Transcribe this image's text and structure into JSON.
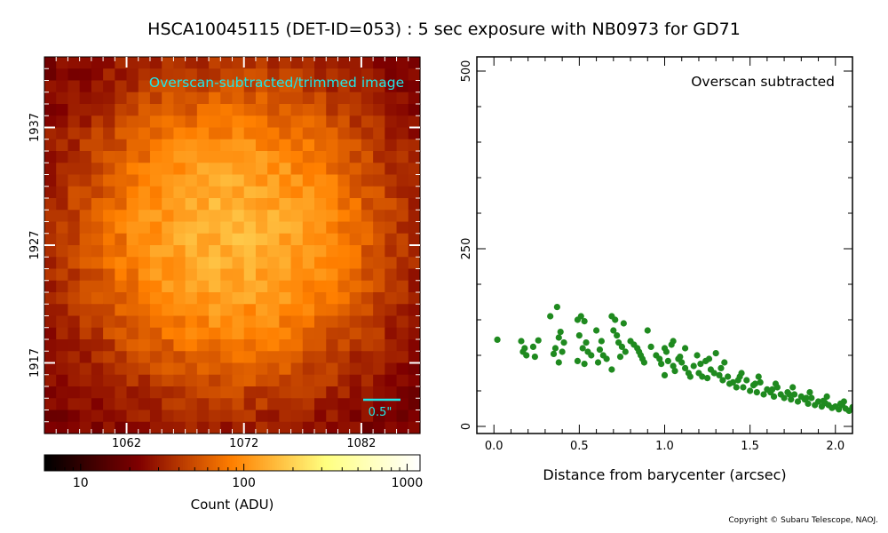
{
  "title": "HSCA10045115 (DET-ID=053) :  5 sec exposure with NB0973 for GD71",
  "copyright": "Copyright © Subaru Telescope, NAOJ.",
  "colors": {
    "cyan": "#22e6e6",
    "scatter": "#1f8a1f",
    "frame": "#000000"
  },
  "chart_data": [
    {
      "type": "heatmap",
      "title": "Overscan-subtracted/trimmed image",
      "x_ticks": [
        "1062",
        "1072",
        "1082"
      ],
      "y_ticks": [
        "1937",
        "1927",
        "1917"
      ],
      "x_tick_values": [
        1062,
        1072,
        1082
      ],
      "y_tick_values": [
        1937,
        1927,
        1917
      ],
      "xlim": [
        1055,
        1087
      ],
      "ylim": [
        1911,
        1943
      ],
      "star_center": [
        1071,
        1928
      ],
      "peak_counts": 150,
      "background_counts": 20,
      "scale_bar_label": "0.5\"",
      "colorbar": {
        "label": "Count (ADU)",
        "scale": "log",
        "range": [
          6,
          1200
        ],
        "ticks": [
          "10",
          "100",
          "1000"
        ],
        "tick_values": [
          10,
          100,
          1000
        ],
        "colormap": "afmhot"
      }
    },
    {
      "type": "scatter",
      "annotation": "Overscan subtracted",
      "xlabel": "Distance from barycenter (arcsec)",
      "x_ticks": [
        "0.0",
        "0.5",
        "1.0",
        "1.5",
        "2.0"
      ],
      "x_tick_values": [
        0.0,
        0.5,
        1.0,
        1.5,
        2.0
      ],
      "y_ticks": [
        "0",
        "250",
        "500"
      ],
      "y_tick_values": [
        0,
        250,
        500
      ],
      "xlim": [
        -0.1,
        2.1
      ],
      "ylim": [
        -10,
        520
      ],
      "points": [
        [
          0.02,
          122
        ],
        [
          0.16,
          120
        ],
        [
          0.18,
          110
        ],
        [
          0.17,
          105
        ],
        [
          0.19,
          100
        ],
        [
          0.23,
          112
        ],
        [
          0.24,
          98
        ],
        [
          0.26,
          121
        ],
        [
          0.33,
          155
        ],
        [
          0.35,
          102
        ],
        [
          0.37,
          168
        ],
        [
          0.39,
          133
        ],
        [
          0.38,
          125
        ],
        [
          0.36,
          110
        ],
        [
          0.4,
          105
        ],
        [
          0.41,
          118
        ],
        [
          0.38,
          90
        ],
        [
          0.49,
          150
        ],
        [
          0.51,
          155
        ],
        [
          0.53,
          148
        ],
        [
          0.5,
          128
        ],
        [
          0.52,
          110
        ],
        [
          0.54,
          118
        ],
        [
          0.55,
          105
        ],
        [
          0.57,
          100
        ],
        [
          0.49,
          92
        ],
        [
          0.53,
          88
        ],
        [
          0.6,
          135
        ],
        [
          0.63,
          120
        ],
        [
          0.62,
          108
        ],
        [
          0.64,
          100
        ],
        [
          0.66,
          95
        ],
        [
          0.61,
          90
        ],
        [
          0.69,
          155
        ],
        [
          0.71,
          150
        ],
        [
          0.7,
          135
        ],
        [
          0.72,
          128
        ],
        [
          0.73,
          118
        ],
        [
          0.75,
          112
        ],
        [
          0.76,
          145
        ],
        [
          0.77,
          105
        ],
        [
          0.74,
          98
        ],
        [
          0.69,
          80
        ],
        [
          0.8,
          120
        ],
        [
          0.82,
          115
        ],
        [
          0.84,
          110
        ],
        [
          0.85,
          105
        ],
        [
          0.86,
          100
        ],
        [
          0.87,
          95
        ],
        [
          0.88,
          90
        ],
        [
          0.9,
          135
        ],
        [
          0.92,
          112
        ],
        [
          0.95,
          100
        ],
        [
          0.97,
          95
        ],
        [
          0.98,
          88
        ],
        [
          1.0,
          110
        ],
        [
          1.01,
          105
        ],
        [
          1.02,
          92
        ],
        [
          1.04,
          115
        ],
        [
          1.05,
          85
        ],
        [
          1.06,
          78
        ],
        [
          1.08,
          95
        ],
        [
          1.1,
          90
        ],
        [
          1.12,
          82
        ],
        [
          1.14,
          75
        ],
        [
          1.15,
          70
        ],
        [
          1.17,
          85
        ],
        [
          1.19,
          100
        ],
        [
          1.2,
          75
        ],
        [
          1.22,
          70
        ],
        [
          1.24,
          92
        ],
        [
          1.25,
          68
        ],
        [
          1.27,
          80
        ],
        [
          1.29,
          75
        ],
        [
          1.3,
          103
        ],
        [
          1.32,
          72
        ],
        [
          1.34,
          65
        ],
        [
          1.35,
          90
        ],
        [
          1.37,
          70
        ],
        [
          1.38,
          60
        ],
        [
          1.4,
          62
        ],
        [
          1.42,
          55
        ],
        [
          1.44,
          70
        ],
        [
          1.46,
          55
        ],
        [
          1.48,
          65
        ],
        [
          1.5,
          50
        ],
        [
          1.52,
          58
        ],
        [
          1.54,
          48
        ],
        [
          1.56,
          62
        ],
        [
          1.58,
          45
        ],
        [
          1.6,
          52
        ],
        [
          1.62,
          48
        ],
        [
          1.64,
          42
        ],
        [
          1.66,
          55
        ],
        [
          1.68,
          45
        ],
        [
          1.7,
          40
        ],
        [
          1.72,
          48
        ],
        [
          1.74,
          38
        ],
        [
          1.76,
          45
        ],
        [
          1.78,
          35
        ],
        [
          1.8,
          42
        ],
        [
          1.82,
          38
        ],
        [
          1.84,
          32
        ],
        [
          1.86,
          40
        ],
        [
          1.88,
          30
        ],
        [
          1.9,
          35
        ],
        [
          1.92,
          28
        ],
        [
          1.94,
          33
        ],
        [
          1.96,
          30
        ],
        [
          1.98,
          26
        ],
        [
          2.0,
          28
        ],
        [
          2.02,
          24
        ],
        [
          2.04,
          30
        ],
        [
          2.06,
          25
        ],
        [
          2.08,
          22
        ],
        [
          2.1,
          27
        ],
        [
          1.05,
          120
        ],
        [
          1.12,
          110
        ],
        [
          1.26,
          95
        ],
        [
          1.45,
          75
        ],
        [
          1.55,
          70
        ],
        [
          1.65,
          60
        ],
        [
          1.75,
          55
        ],
        [
          1.85,
          48
        ],
        [
          1.95,
          42
        ],
        [
          2.05,
          35
        ],
        [
          1.0,
          72
        ],
        [
          1.09,
          98
        ],
        [
          1.21,
          88
        ],
        [
          1.33,
          82
        ],
        [
          1.43,
          65
        ],
        [
          1.53,
          60
        ],
        [
          1.63,
          52
        ],
        [
          1.73,
          45
        ],
        [
          1.83,
          40
        ],
        [
          1.93,
          36
        ],
        [
          2.03,
          32
        ]
      ]
    }
  ]
}
